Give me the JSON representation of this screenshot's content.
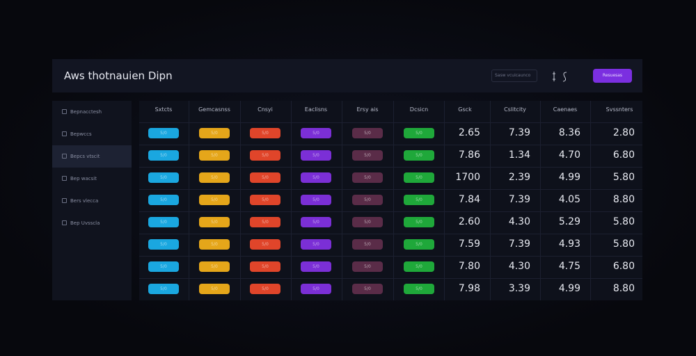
{
  "header": {
    "title": "Aws thotnauien Dipn",
    "search_placeholder": "Sasw vcuicaunco",
    "button": "Resuesas"
  },
  "sidebar": {
    "items": [
      "Bepnacctesh",
      "Bepwccs",
      "Bepcs vtscit",
      "Bep wacsit",
      "Bers vlecca",
      "Bep Uvsscla"
    ],
    "active": 2
  },
  "table": {
    "columns": [
      "Sxtcts",
      "Gemcasnss",
      "Cnsyi",
      "Eaclisns",
      "Ersy ais",
      "Dcsicn",
      "Gsck",
      "Cslitcity",
      "Caenaes",
      "Svssnters"
    ],
    "pill_colors": [
      "#1aa7e0",
      "#e5a61a",
      "#e0452a",
      "#7b2fd6",
      "#5a2c48",
      "#1fa83a"
    ],
    "rows": [
      {
        "pills": [
          "5/0",
          "5/0",
          "5/0",
          "5/0",
          "5/0",
          "5/0"
        ],
        "values": [
          "2.65",
          "7.39",
          "8.36",
          "2.80"
        ]
      },
      {
        "pills": [
          "5/0",
          "5/0",
          "5/0",
          "5/0",
          "5/0",
          "5/0"
        ],
        "values": [
          "7.86",
          "1.34",
          "4.70",
          "6.80"
        ]
      },
      {
        "pills": [
          "5/0",
          "5/0",
          "5/0",
          "5/0",
          "5/0",
          "5/0"
        ],
        "values": [
          "1700",
          "2.39",
          "4.99",
          "5.80"
        ]
      },
      {
        "pills": [
          "5/0",
          "5/0",
          "5/0",
          "5/0",
          "5/0",
          "5/0"
        ],
        "values": [
          "7.84",
          "7.39",
          "4.05",
          "8.80"
        ]
      },
      {
        "pills": [
          "5/0",
          "5/0",
          "5/0",
          "5/0",
          "5/0",
          "5/0"
        ],
        "values": [
          "2.60",
          "4.30",
          "5.29",
          "5.80"
        ]
      },
      {
        "pills": [
          "5/0",
          "5/0",
          "5/0",
          "5/0",
          "5/0",
          "5/0"
        ],
        "values": [
          "7.59",
          "7.39",
          "4.93",
          "5.80"
        ]
      },
      {
        "pills": [
          "5/0",
          "5/0",
          "5/0",
          "5/0",
          "5/0",
          "5/0"
        ],
        "values": [
          "7.80",
          "4.30",
          "4.75",
          "6.80"
        ]
      },
      {
        "pills": [
          "5/0",
          "5/0",
          "5/0",
          "5/0",
          "5/0",
          "5/0"
        ],
        "values": [
          "7.98",
          "3.39",
          "4.99",
          "8.80"
        ]
      }
    ]
  }
}
